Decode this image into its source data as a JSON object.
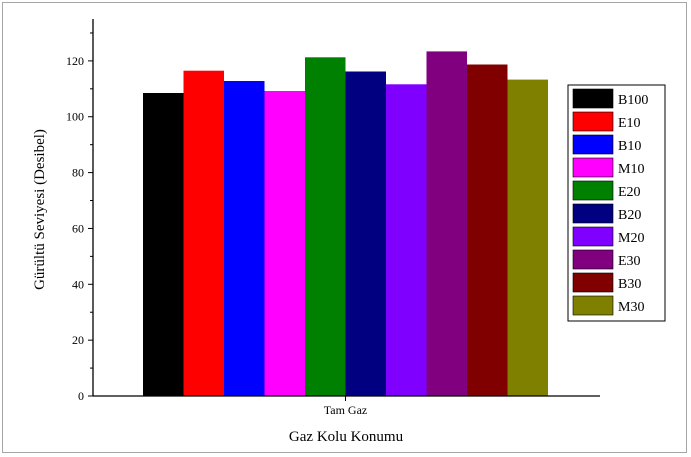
{
  "chart_data": {
    "type": "bar",
    "categories": [
      "Tam Gaz"
    ],
    "xlabel": "Gaz Kolu Konumu",
    "ylabel": "Gürültü Seviyesi (Desibel)",
    "ylim": [
      0,
      135
    ],
    "yticks": [
      0,
      20,
      40,
      60,
      80,
      100,
      120
    ],
    "grid": false,
    "legend_position": "right",
    "series": [
      {
        "name": "B100",
        "values": [
          108.5
        ],
        "color": "#000000"
      },
      {
        "name": "E10",
        "values": [
          116.5
        ],
        "color": "#ff0000"
      },
      {
        "name": "B10",
        "values": [
          112.8
        ],
        "color": "#0000ff"
      },
      {
        "name": "M10",
        "values": [
          109.2
        ],
        "color": "#ff00ff"
      },
      {
        "name": "E20",
        "values": [
          121.3
        ],
        "color": "#008000"
      },
      {
        "name": "B20",
        "values": [
          116.2
        ],
        "color": "#000080"
      },
      {
        "name": "M20",
        "values": [
          111.6
        ],
        "color": "#8000ff"
      },
      {
        "name": "E30",
        "values": [
          123.4
        ],
        "color": "#800080"
      },
      {
        "name": "B30",
        "values": [
          118.7
        ],
        "color": "#800000"
      },
      {
        "name": "M30",
        "values": [
          113.3
        ],
        "color": "#808000"
      }
    ]
  }
}
